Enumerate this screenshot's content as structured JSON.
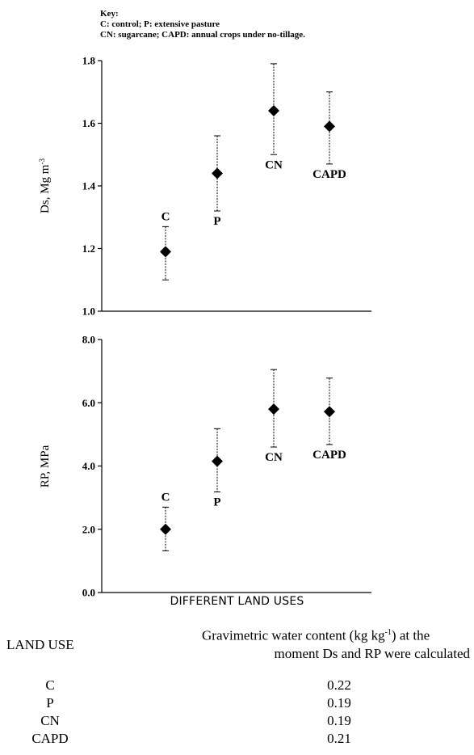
{
  "key": {
    "title": "Key:",
    "line1": "C: control; P: extensive pasture",
    "line2": "CN: sugarcane; CAPD: annual crops under no-tillage."
  },
  "chart_data": [
    {
      "type": "scatter",
      "ylabel": "Ds, Mg m",
      "ylabel_superscript": "-3",
      "ylim": [
        1.0,
        1.8
      ],
      "yticks": [
        "1.0",
        "1.2",
        "1.4",
        "1.6",
        "1.8"
      ],
      "categories": [
        "C",
        "P",
        "CN",
        "CAPD"
      ],
      "values": [
        1.19,
        1.44,
        1.64,
        1.59
      ],
      "err_low": [
        1.1,
        1.32,
        1.5,
        1.47
      ],
      "err_high": [
        1.27,
        1.56,
        1.79,
        1.7
      ],
      "labels": [
        "C",
        "P",
        "CN",
        "CAPD"
      ],
      "label_position": [
        "above",
        "below",
        "below",
        "below"
      ],
      "grid": false
    },
    {
      "type": "scatter",
      "ylabel": "RP, MPa",
      "ylim": [
        0.0,
        8.0
      ],
      "yticks": [
        "0.0",
        "2.0",
        "4.0",
        "6.0",
        "8.0"
      ],
      "categories": [
        "C",
        "P",
        "CN",
        "CAPD"
      ],
      "values": [
        2.0,
        4.15,
        5.8,
        5.72
      ],
      "err_low": [
        1.32,
        3.18,
        4.6,
        4.68
      ],
      "err_high": [
        2.7,
        5.18,
        7.05,
        6.78
      ],
      "labels": [
        "C",
        "P",
        "CN",
        "CAPD"
      ],
      "label_position": [
        "above",
        "below",
        "below",
        "below"
      ],
      "xlabel": "DIFFERENT LAND USES",
      "grid": false
    }
  ],
  "table": {
    "header_land_use": "LAND USE",
    "header_water_line1": "Gravimetric water content (kg kg",
    "header_water_sup": "-1",
    "header_water_line1_end": ") at the",
    "header_water_line2": "moment Ds and RP were calculated",
    "rows": [
      {
        "land_use": "C",
        "water": "0.22"
      },
      {
        "land_use": "P",
        "water": "0.19"
      },
      {
        "land_use": "CN",
        "water": "0.19"
      },
      {
        "land_use": "CAPD",
        "water": "0.21"
      }
    ]
  }
}
